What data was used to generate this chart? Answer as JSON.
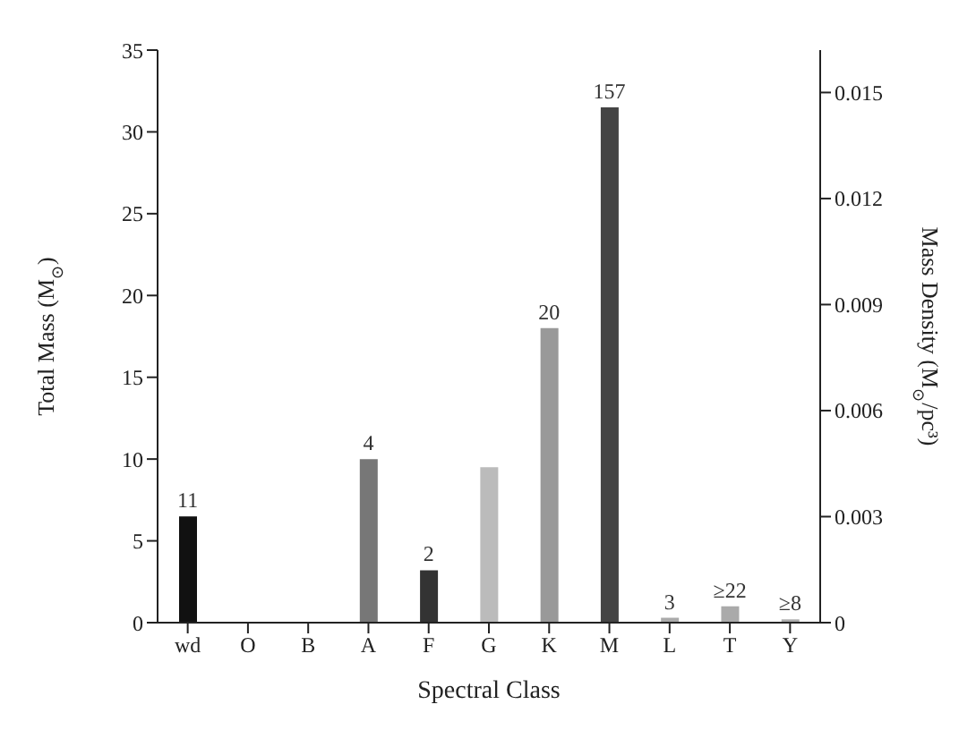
{
  "chart_data": {
    "type": "bar",
    "xlabel": "Spectral Class",
    "ylabel": "Total Mass (M$_{⊙}$)",
    "y2label": "Mass Density (M$_{⊙}$/pc³)",
    "categories": [
      "wd",
      "O",
      "B",
      "A",
      "F",
      "G",
      "K",
      "M",
      "L",
      "T",
      "Y"
    ],
    "values": [
      6.5,
      null,
      null,
      10,
      3.2,
      9.5,
      18,
      31.5,
      0.3,
      1,
      0.2
    ],
    "colors": [
      "#111111",
      "#111111",
      "#111111",
      "#777777",
      "#333333",
      "#bbbbbb",
      "#999999",
      "#444444",
      "#aaaaaa",
      "#aaaaaa",
      "#aaaaaa"
    ],
    "annotations": [
      {
        "text": "11",
        "x": "wd",
        "y": 6.5
      },
      {
        "text": "4",
        "x": "A",
        "y": 10
      },
      {
        "text": "2",
        "x": "F",
        "y": 3.2
      },
      {
        "text": "20",
        "x": "K",
        "y": 18
      },
      {
        "text": "157",
        "x": "M",
        "y": 31.5
      },
      {
        "text": "3",
        "x": "L",
        "y": 0.3
      },
      {
        "text": "≥22",
        "x": "T",
        "y": 1
      },
      {
        "text": "≥8",
        "x": "Y",
        "y": 0.2
      }
    ],
    "ylim": [
      0,
      35
    ],
    "yticks": [
      0,
      5,
      10,
      15,
      20,
      25,
      30,
      35
    ],
    "y2lim": [
      0,
      0.0162
    ],
    "y2ticks": [
      0,
      0.003,
      0.006,
      0.009,
      0.012,
      0.015
    ]
  }
}
